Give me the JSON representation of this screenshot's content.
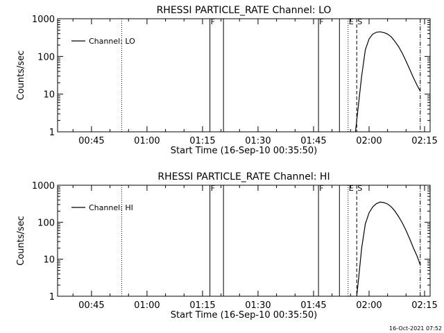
{
  "footer": {
    "timestamp": "16-Oct-2021 07:52"
  },
  "chart_data": [
    {
      "type": "line",
      "title": "RHESSI PARTICLE_RATE Channel: LO",
      "xlabel": "Start Time (16-Sep-10 00:35:50)",
      "ylabel": "Counts/sec",
      "yscale": "log",
      "ylim": [
        1,
        1000
      ],
      "xlim": [
        "00:35:50",
        "02:16:30"
      ],
      "x_ticks": [
        "00:45",
        "01:00",
        "01:15",
        "01:30",
        "01:45",
        "02:00",
        "02:15"
      ],
      "y_ticks": [
        "1",
        "10",
        "100",
        "1000"
      ],
      "legend": {
        "position": "top-left",
        "entries": [
          "Channel: LO"
        ]
      },
      "grid": false,
      "markers": [
        {
          "time": "00:53:10",
          "style": "dotted",
          "label": ""
        },
        {
          "time": "01:17:00",
          "style": "solid",
          "label": "F"
        },
        {
          "time": "01:20:40",
          "style": "solid",
          "label": ""
        },
        {
          "time": "01:46:20",
          "style": "solid",
          "label": "F"
        },
        {
          "time": "01:52:00",
          "style": "solid",
          "label": ""
        },
        {
          "time": "01:54:20",
          "style": "dotted",
          "label": "E"
        },
        {
          "time": "01:56:40",
          "style": "dashed",
          "label": "S"
        },
        {
          "time": "02:13:50",
          "style": "dashdot",
          "label": ""
        }
      ],
      "series": [
        {
          "name": "Channel: LO",
          "x": [
            "01:56:20",
            "01:57:00",
            "01:58:00",
            "01:59:00",
            "02:00:00",
            "02:01:00",
            "02:02:00",
            "02:03:00",
            "02:04:00",
            "02:05:00",
            "02:06:00",
            "02:07:00",
            "02:08:00",
            "02:09:00",
            "02:10:00",
            "02:11:00",
            "02:12:00",
            "02:13:00",
            "02:13:50"
          ],
          "y": [
            1,
            4,
            30,
            150,
            290,
            390,
            440,
            450,
            430,
            390,
            330,
            250,
            180,
            120,
            75,
            45,
            27,
            17,
            12
          ]
        }
      ]
    },
    {
      "type": "line",
      "title": "RHESSI PARTICLE_RATE Channel: HI",
      "xlabel": "Start Time (16-Sep-10 00:35:50)",
      "ylabel": "Counts/sec",
      "yscale": "log",
      "ylim": [
        1,
        1000
      ],
      "xlim": [
        "00:35:50",
        "02:16:30"
      ],
      "x_ticks": [
        "00:45",
        "01:00",
        "01:15",
        "01:30",
        "01:45",
        "02:00",
        "02:15"
      ],
      "y_ticks": [
        "1",
        "10",
        "100",
        "1000"
      ],
      "legend": {
        "position": "top-left",
        "entries": [
          "Channel: HI"
        ]
      },
      "grid": false,
      "markers": [
        {
          "time": "00:53:10",
          "style": "dotted",
          "label": ""
        },
        {
          "time": "01:17:00",
          "style": "solid",
          "label": "F"
        },
        {
          "time": "01:20:40",
          "style": "solid",
          "label": ""
        },
        {
          "time": "01:46:20",
          "style": "solid",
          "label": "F"
        },
        {
          "time": "01:52:00",
          "style": "solid",
          "label": ""
        },
        {
          "time": "01:54:20",
          "style": "dotted",
          "label": "E"
        },
        {
          "time": "01:56:40",
          "style": "dashed",
          "label": "S"
        },
        {
          "time": "02:13:50",
          "style": "dashdot",
          "label": ""
        }
      ],
      "series": [
        {
          "name": "Channel: HI",
          "x": [
            "01:56:40",
            "01:57:10",
            "01:58:00",
            "01:59:00",
            "02:00:00",
            "02:01:00",
            "02:02:00",
            "02:03:00",
            "02:04:00",
            "02:05:00",
            "02:06:00",
            "02:07:00",
            "02:08:00",
            "02:09:00",
            "02:10:00",
            "02:11:00",
            "02:12:00",
            "02:13:00",
            "02:13:50"
          ],
          "y": [
            1,
            3,
            20,
            90,
            180,
            260,
            320,
            350,
            340,
            310,
            260,
            200,
            140,
            95,
            60,
            35,
            20,
            12,
            7
          ]
        }
      ]
    }
  ]
}
